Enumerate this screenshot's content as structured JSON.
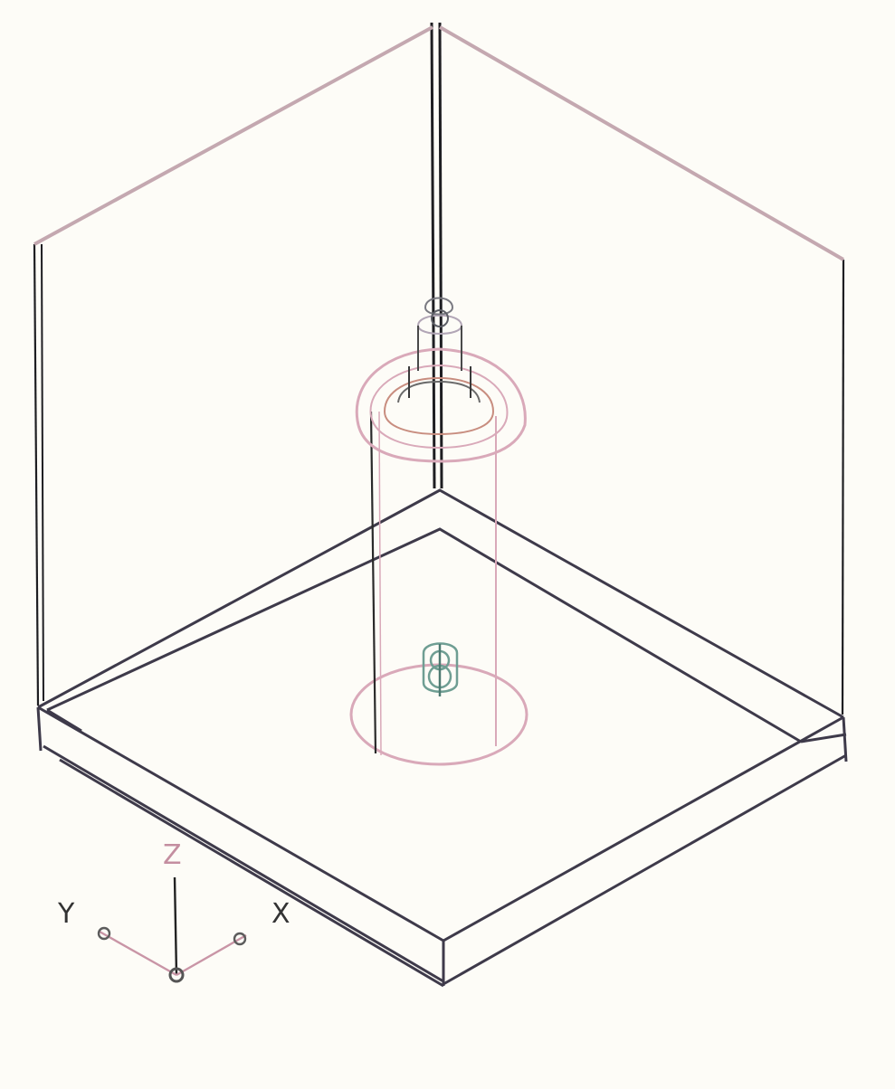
{
  "diagram": {
    "axes": {
      "x_label": "X",
      "y_label": "Y",
      "z_label": "Z"
    },
    "colors": {
      "background": "#fdfcf7",
      "frame_lines": "#1e1e22",
      "upper_edges": "#c4a8b0",
      "plate_edges": "#3e3a4a",
      "plate_accent": "#7f9c8a",
      "cylinder_pink": "#d9a9b9",
      "cylinder_dark": "#2a2a2a",
      "nozzle_green": "#6f9e93",
      "axis_pink": "#c995a6",
      "axis_dark": "#222222",
      "z_color": "#c48ea0"
    }
  }
}
